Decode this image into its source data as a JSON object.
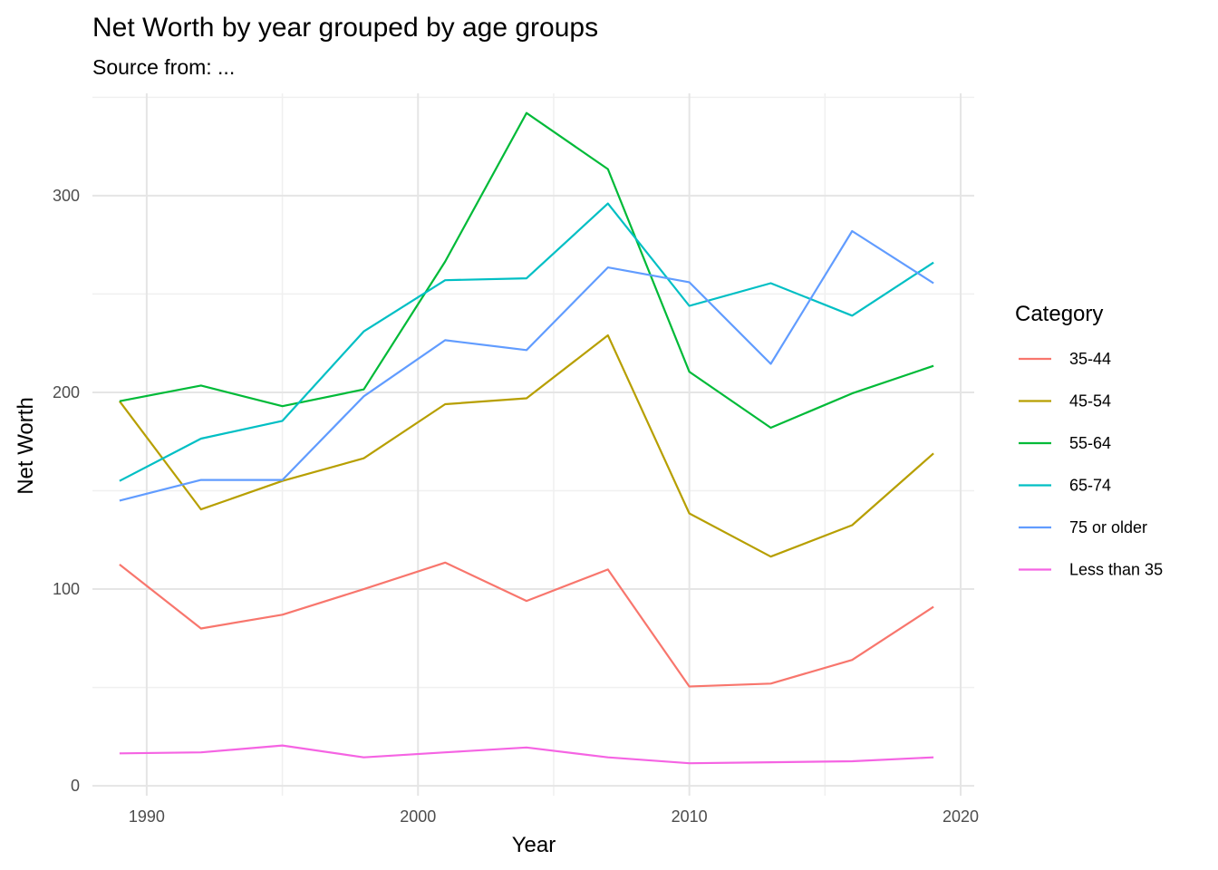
{
  "chart_data": {
    "type": "line",
    "title": "Net Worth by year grouped by age groups",
    "subtitle": "Source from: ...",
    "xlabel": "Year",
    "ylabel": "Net Worth",
    "xlim": [
      1988,
      2020.5
    ],
    "ylim": [
      -5,
      352
    ],
    "x_ticks": [
      1990,
      2000,
      2010,
      2020
    ],
    "y_ticks": [
      0,
      100,
      200,
      300
    ],
    "grid": true,
    "legend": {
      "title": "Category",
      "position": "right"
    },
    "x": [
      1989,
      1992,
      1995,
      1998,
      2001,
      2004,
      2007,
      2010,
      2013,
      2016,
      2019
    ],
    "series": [
      {
        "name": "35-44",
        "color": "#F8766D",
        "values": [
          112.5,
          80,
          87,
          100,
          113.5,
          94,
          110,
          50.5,
          52,
          64,
          91
        ]
      },
      {
        "name": "45-54",
        "color": "#B79F00",
        "values": [
          195.5,
          140.5,
          155,
          166.5,
          194,
          197,
          229,
          138.5,
          116.5,
          132.5,
          169
        ]
      },
      {
        "name": "55-64",
        "color": "#00BA38",
        "values": [
          195.5,
          203.5,
          193,
          201.5,
          266.5,
          342,
          313.5,
          210.5,
          182,
          199.5,
          213.5
        ]
      },
      {
        "name": "65-74",
        "color": "#00BFC4",
        "values": [
          155,
          176.5,
          185.5,
          231,
          257,
          258,
          296,
          244,
          255.5,
          239,
          266
        ]
      },
      {
        "name": "75 or older",
        "color": "#619CFF",
        "values": [
          145,
          155.5,
          155.5,
          198,
          226.5,
          221.5,
          263.5,
          256,
          214.5,
          282,
          255.5
        ]
      },
      {
        "name": "Less than 35",
        "color": "#F564E3",
        "values": [
          16.5,
          17,
          20.5,
          14.5,
          17,
          19.5,
          14.5,
          11.5,
          12,
          12.5,
          14.5
        ]
      }
    ]
  }
}
